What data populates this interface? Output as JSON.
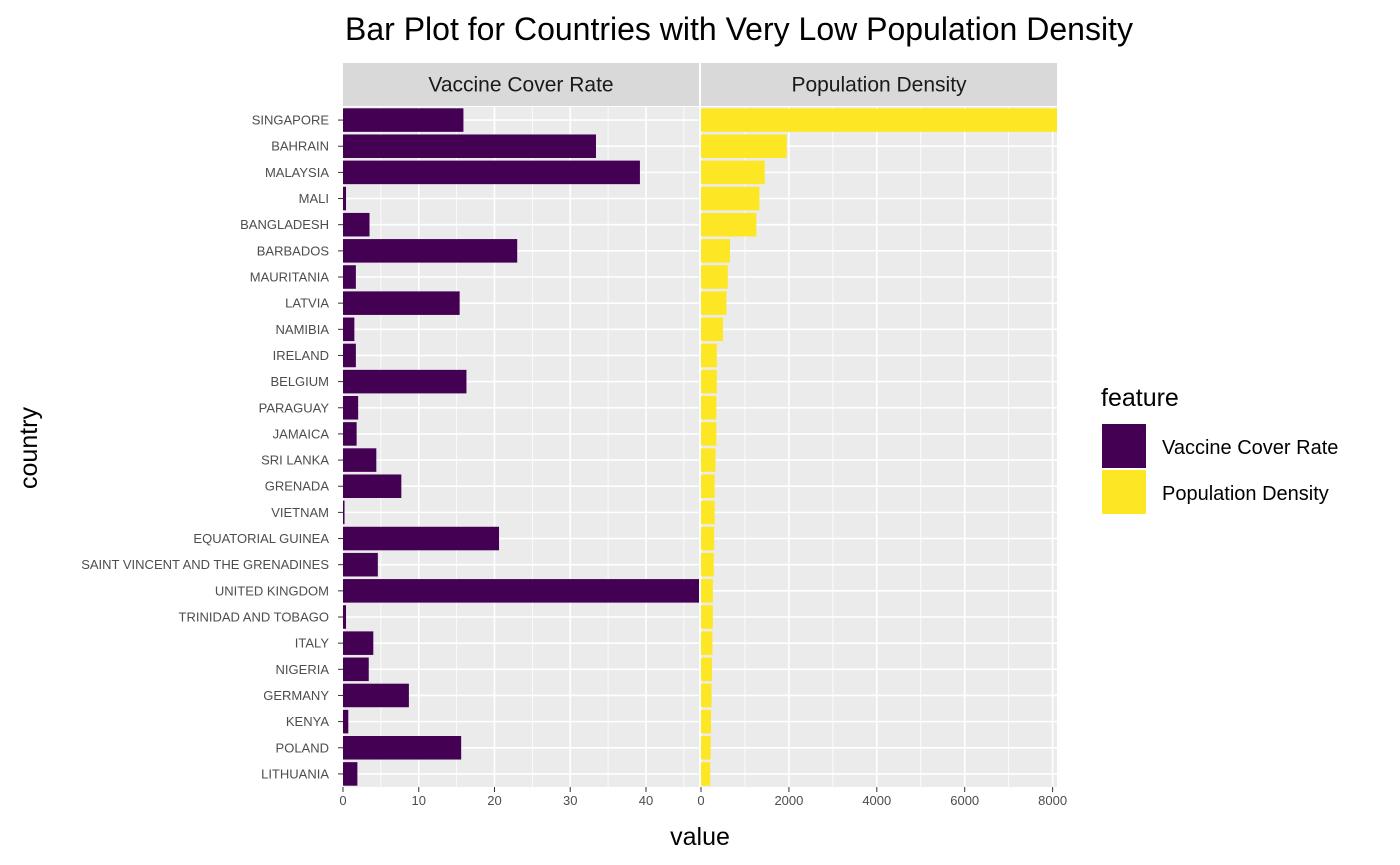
{
  "chart_data": {
    "type": "bar",
    "orientation": "horizontal",
    "title": "Bar Plot for Countries with Very Low Population Density",
    "xlabel": "value",
    "ylabel": "country",
    "grid": true,
    "legend_position": "right",
    "legend": {
      "title": "feature",
      "items": [
        {
          "label": "Vaccine Cover Rate",
          "color": "#440154"
        },
        {
          "label": "Population Density",
          "color": "#FDE725"
        }
      ]
    },
    "categories": [
      "SINGAPORE",
      "BAHRAIN",
      "MALAYSIA",
      "MALI",
      "BANGLADESH",
      "BARBADOS",
      "MAURITANIA",
      "LATVIA",
      "NAMIBIA",
      "IRELAND",
      "BELGIUM",
      "PARAGUAY",
      "JAMAICA",
      "SRI LANKA",
      "GRENADA",
      "VIETNAM",
      "EQUATORIAL GUINEA",
      "SAINT VINCENT AND THE GRENADINES",
      "UNITED KINGDOM",
      "TRINIDAD AND TOBAGO",
      "ITALY",
      "NIGERIA",
      "GERMANY",
      "KENYA",
      "POLAND",
      "LITHUANIA"
    ],
    "panels": [
      {
        "name": "Vaccine Cover Rate",
        "color": "#440154",
        "xlim": [
          0,
          47
        ],
        "ticks": [
          0,
          10,
          20,
          30,
          40
        ],
        "tick_labels": [
          "0",
          "10",
          "20",
          "30",
          "40"
        ],
        "values": [
          15.9,
          33.4,
          39.2,
          0.4,
          3.5,
          23.0,
          1.7,
          15.4,
          1.5,
          1.7,
          16.3,
          2.0,
          1.8,
          4.4,
          7.7,
          0.2,
          20.6,
          4.6,
          47.0,
          0.4,
          4.0,
          3.4,
          8.7,
          0.7,
          15.6,
          1.9
        ]
      },
      {
        "name": "Population Density",
        "color": "#FDE725",
        "xlim": [
          0,
          8100
        ],
        "ticks": [
          0,
          2000,
          4000,
          6000,
          8000
        ],
        "tick_labels": [
          "0",
          "2000",
          "4000",
          "6000",
          "8000"
        ],
        "values": [
          8100,
          1950,
          1450,
          1330,
          1260,
          660,
          610,
          580,
          500,
          360,
          360,
          350,
          350,
          330,
          310,
          310,
          300,
          290,
          270,
          270,
          260,
          250,
          240,
          230,
          220,
          210
        ]
      }
    ]
  }
}
